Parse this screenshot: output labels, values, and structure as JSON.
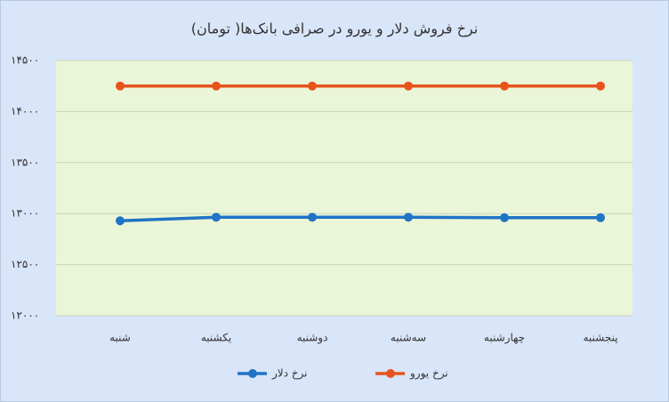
{
  "chart_data": {
    "type": "line",
    "title": "نرخ فروش دلار و یورو در صرافی بانک‌ها( تومان)",
    "categories": [
      "شنبه",
      "یکشنبه",
      "دوشنبه",
      "سه‌شنبه",
      "چهارشنبه",
      "پنجشنبه"
    ],
    "series": [
      {
        "name": "نرخ دلار",
        "color": "#1f74c6",
        "values": [
          12930,
          12965,
          12965,
          12965,
          12960,
          12960
        ]
      },
      {
        "name": "نرخ یورو",
        "color": "#e8531c",
        "values": [
          14250,
          14250,
          14250,
          14250,
          14250,
          14250
        ]
      }
    ],
    "ylim": [
      12000,
      14500
    ],
    "yticks": [
      {
        "value": 12000,
        "label": "۱۲۰۰۰"
      },
      {
        "value": 12500,
        "label": "۱۲۵۰۰"
      },
      {
        "value": 13000,
        "label": "۱۳۰۰۰"
      },
      {
        "value": 13500,
        "label": "۱۳۵۰۰"
      },
      {
        "value": 14000,
        "label": "۱۴۰۰۰"
      },
      {
        "value": 14500,
        "label": "۱۴۵۰۰"
      }
    ],
    "grid": true,
    "legend": "bottom"
  }
}
